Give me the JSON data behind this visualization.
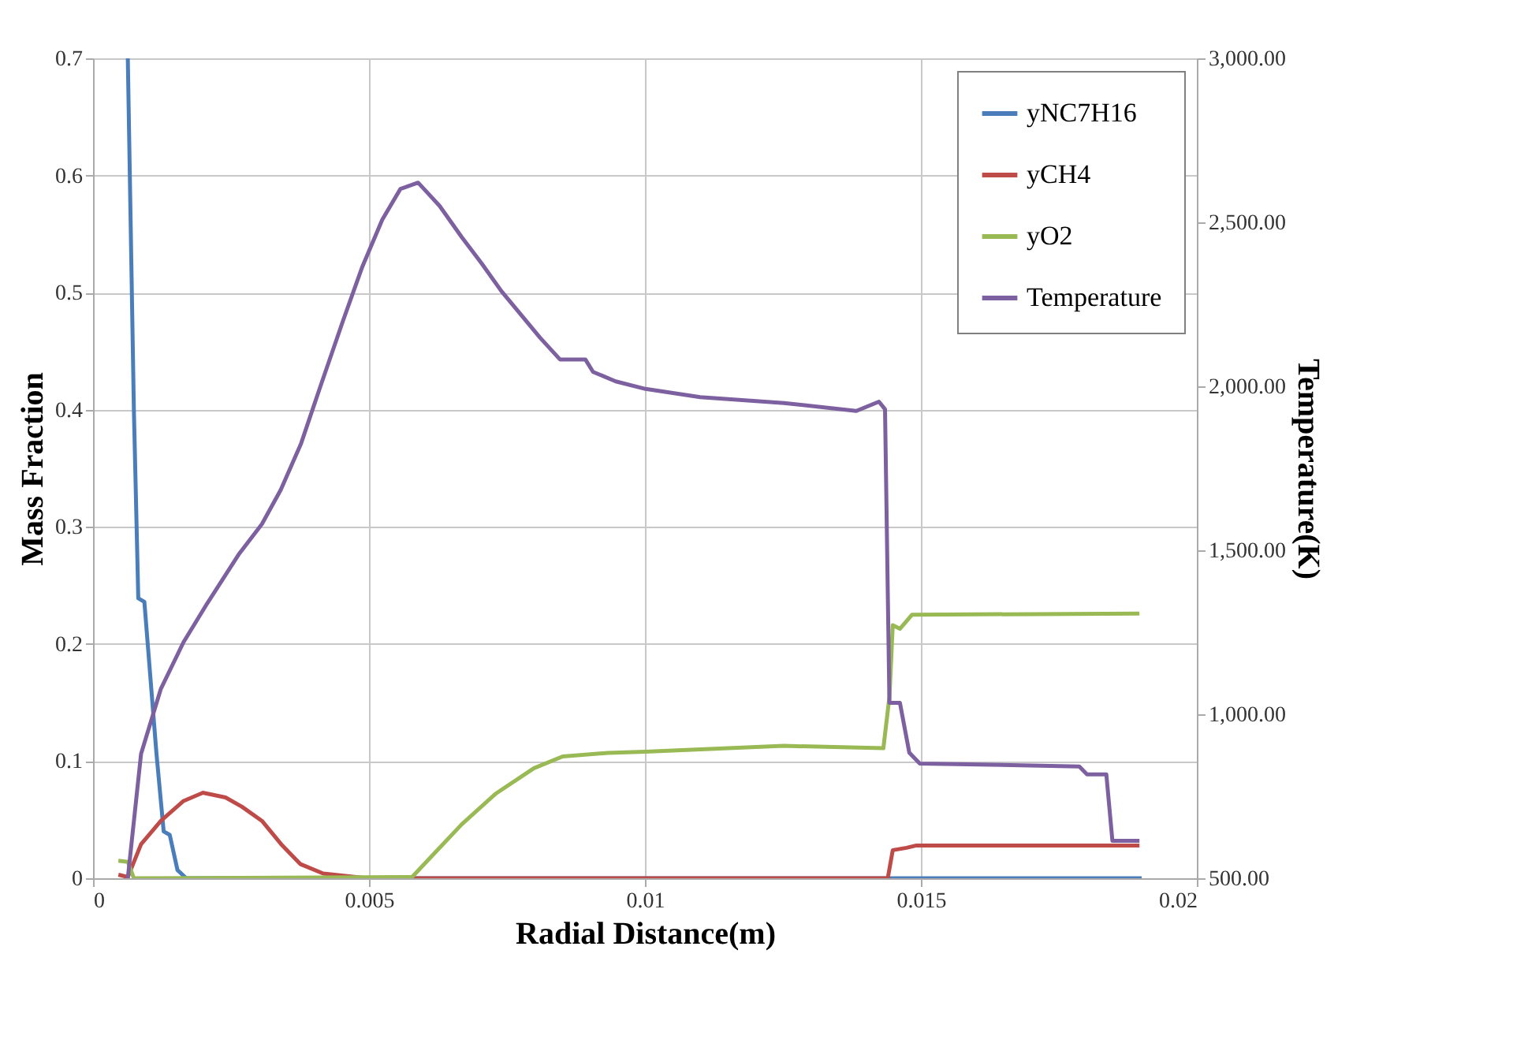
{
  "chart_data": {
    "type": "line",
    "xlabel": "Radial Distance(m)",
    "ylabel": "Mass Fraction",
    "y2label": "Temperature(K)",
    "xlim": [
      0,
      0.02
    ],
    "xticks": [
      0,
      0.005,
      0.01,
      0.015,
      0.02
    ],
    "ylim": [
      0,
      0.7
    ],
    "yticks": [
      0,
      0.1,
      0.2,
      0.3,
      0.4,
      0.5,
      0.6,
      0.7
    ],
    "y2lim": [
      500,
      3000
    ],
    "y2ticks": [
      {
        "value": 500,
        "label": "500.00"
      },
      {
        "value": 1000,
        "label": "1,000.00"
      },
      {
        "value": 1500,
        "label": "1,500.00"
      },
      {
        "value": 2000,
        "label": "2,000.00"
      },
      {
        "value": 2500,
        "label": "2,500.00"
      },
      {
        "value": 3000,
        "label": "3,000.00"
      }
    ],
    "grid": true,
    "legend": "top right",
    "marker": "none",
    "line_style": "solid",
    "series": [
      {
        "name": "yNC7H16",
        "color": "#4a7ebb",
        "x": [
          0.00063,
          0.00074,
          0.00082,
          0.00093,
          0.00115,
          0.00128,
          0.00139,
          0.00153,
          0.00169,
          0.019
        ],
        "values": [
          0.7,
          0.4,
          0.239,
          0.236,
          0.106,
          0.04,
          0.037,
          0.007,
          0,
          0
        ]
      },
      {
        "name": "yCH4",
        "color": "#be4b48",
        "x": [
          0.00046,
          0.00063,
          0.00087,
          0.00123,
          0.00164,
          0.00199,
          0.0024,
          0.0027,
          0.00306,
          0.00341,
          0.00376,
          0.00417,
          0.00497,
          0.0144,
          0.01449,
          0.01474,
          0.01492,
          0.01896
        ],
        "values": [
          0.003,
          0.001,
          0.029,
          0.049,
          0.066,
          0.073,
          0.069,
          0.061,
          0.049,
          0.029,
          0.012,
          0.004,
          0,
          0,
          0.024,
          0.026,
          0.028,
          0.028
        ]
      },
      {
        "name": "yO2",
        "color": "#98b954",
        "x": [
          0.00046,
          0.00063,
          0.00074,
          0.00578,
          0.0062,
          0.00668,
          0.00729,
          0.00799,
          0.00851,
          0.00933,
          0.01,
          0.01252,
          0.01432,
          0.01443,
          0.01449,
          0.01462,
          0.01484,
          0.01896
        ],
        "values": [
          0.015,
          0.014,
          0,
          0.001,
          0.022,
          0.046,
          0.072,
          0.094,
          0.104,
          0.107,
          0.108,
          0.113,
          0.111,
          0.155,
          0.216,
          0.213,
          0.225,
          0.226
        ]
      },
      {
        "name": "Temperature",
        "color": "#7d60a0",
        "axis": "y2",
        "x": [
          0.00063,
          0.00087,
          0.00123,
          0.00164,
          0.00205,
          0.00265,
          0.00306,
          0.0034,
          0.00377,
          0.00412,
          0.00453,
          0.00488,
          0.00524,
          0.00557,
          0.00589,
          0.00628,
          0.00668,
          0.00704,
          0.0074,
          0.00775,
          0.0081,
          0.00846,
          0.00892,
          0.00906,
          0.00947,
          0.01001,
          0.011,
          0.01252,
          0.01383,
          0.01424,
          0.01435,
          0.01443,
          0.01462,
          0.01479,
          0.01498,
          0.01787,
          0.01801,
          0.01836,
          0.01847,
          0.01896
        ],
        "values": [
          500,
          879,
          1078,
          1220,
          1333,
          1490,
          1580,
          1684,
          1826,
          2000,
          2200,
          2365,
          2508,
          2602,
          2621,
          2550,
          2455,
          2375,
          2290,
          2219,
          2148,
          2082,
          2082,
          2044,
          2015,
          1992,
          1967,
          1949,
          1925,
          1953,
          1930,
          1035,
          1035,
          883,
          850,
          841,
          817,
          817,
          614,
          614
        ]
      }
    ]
  }
}
